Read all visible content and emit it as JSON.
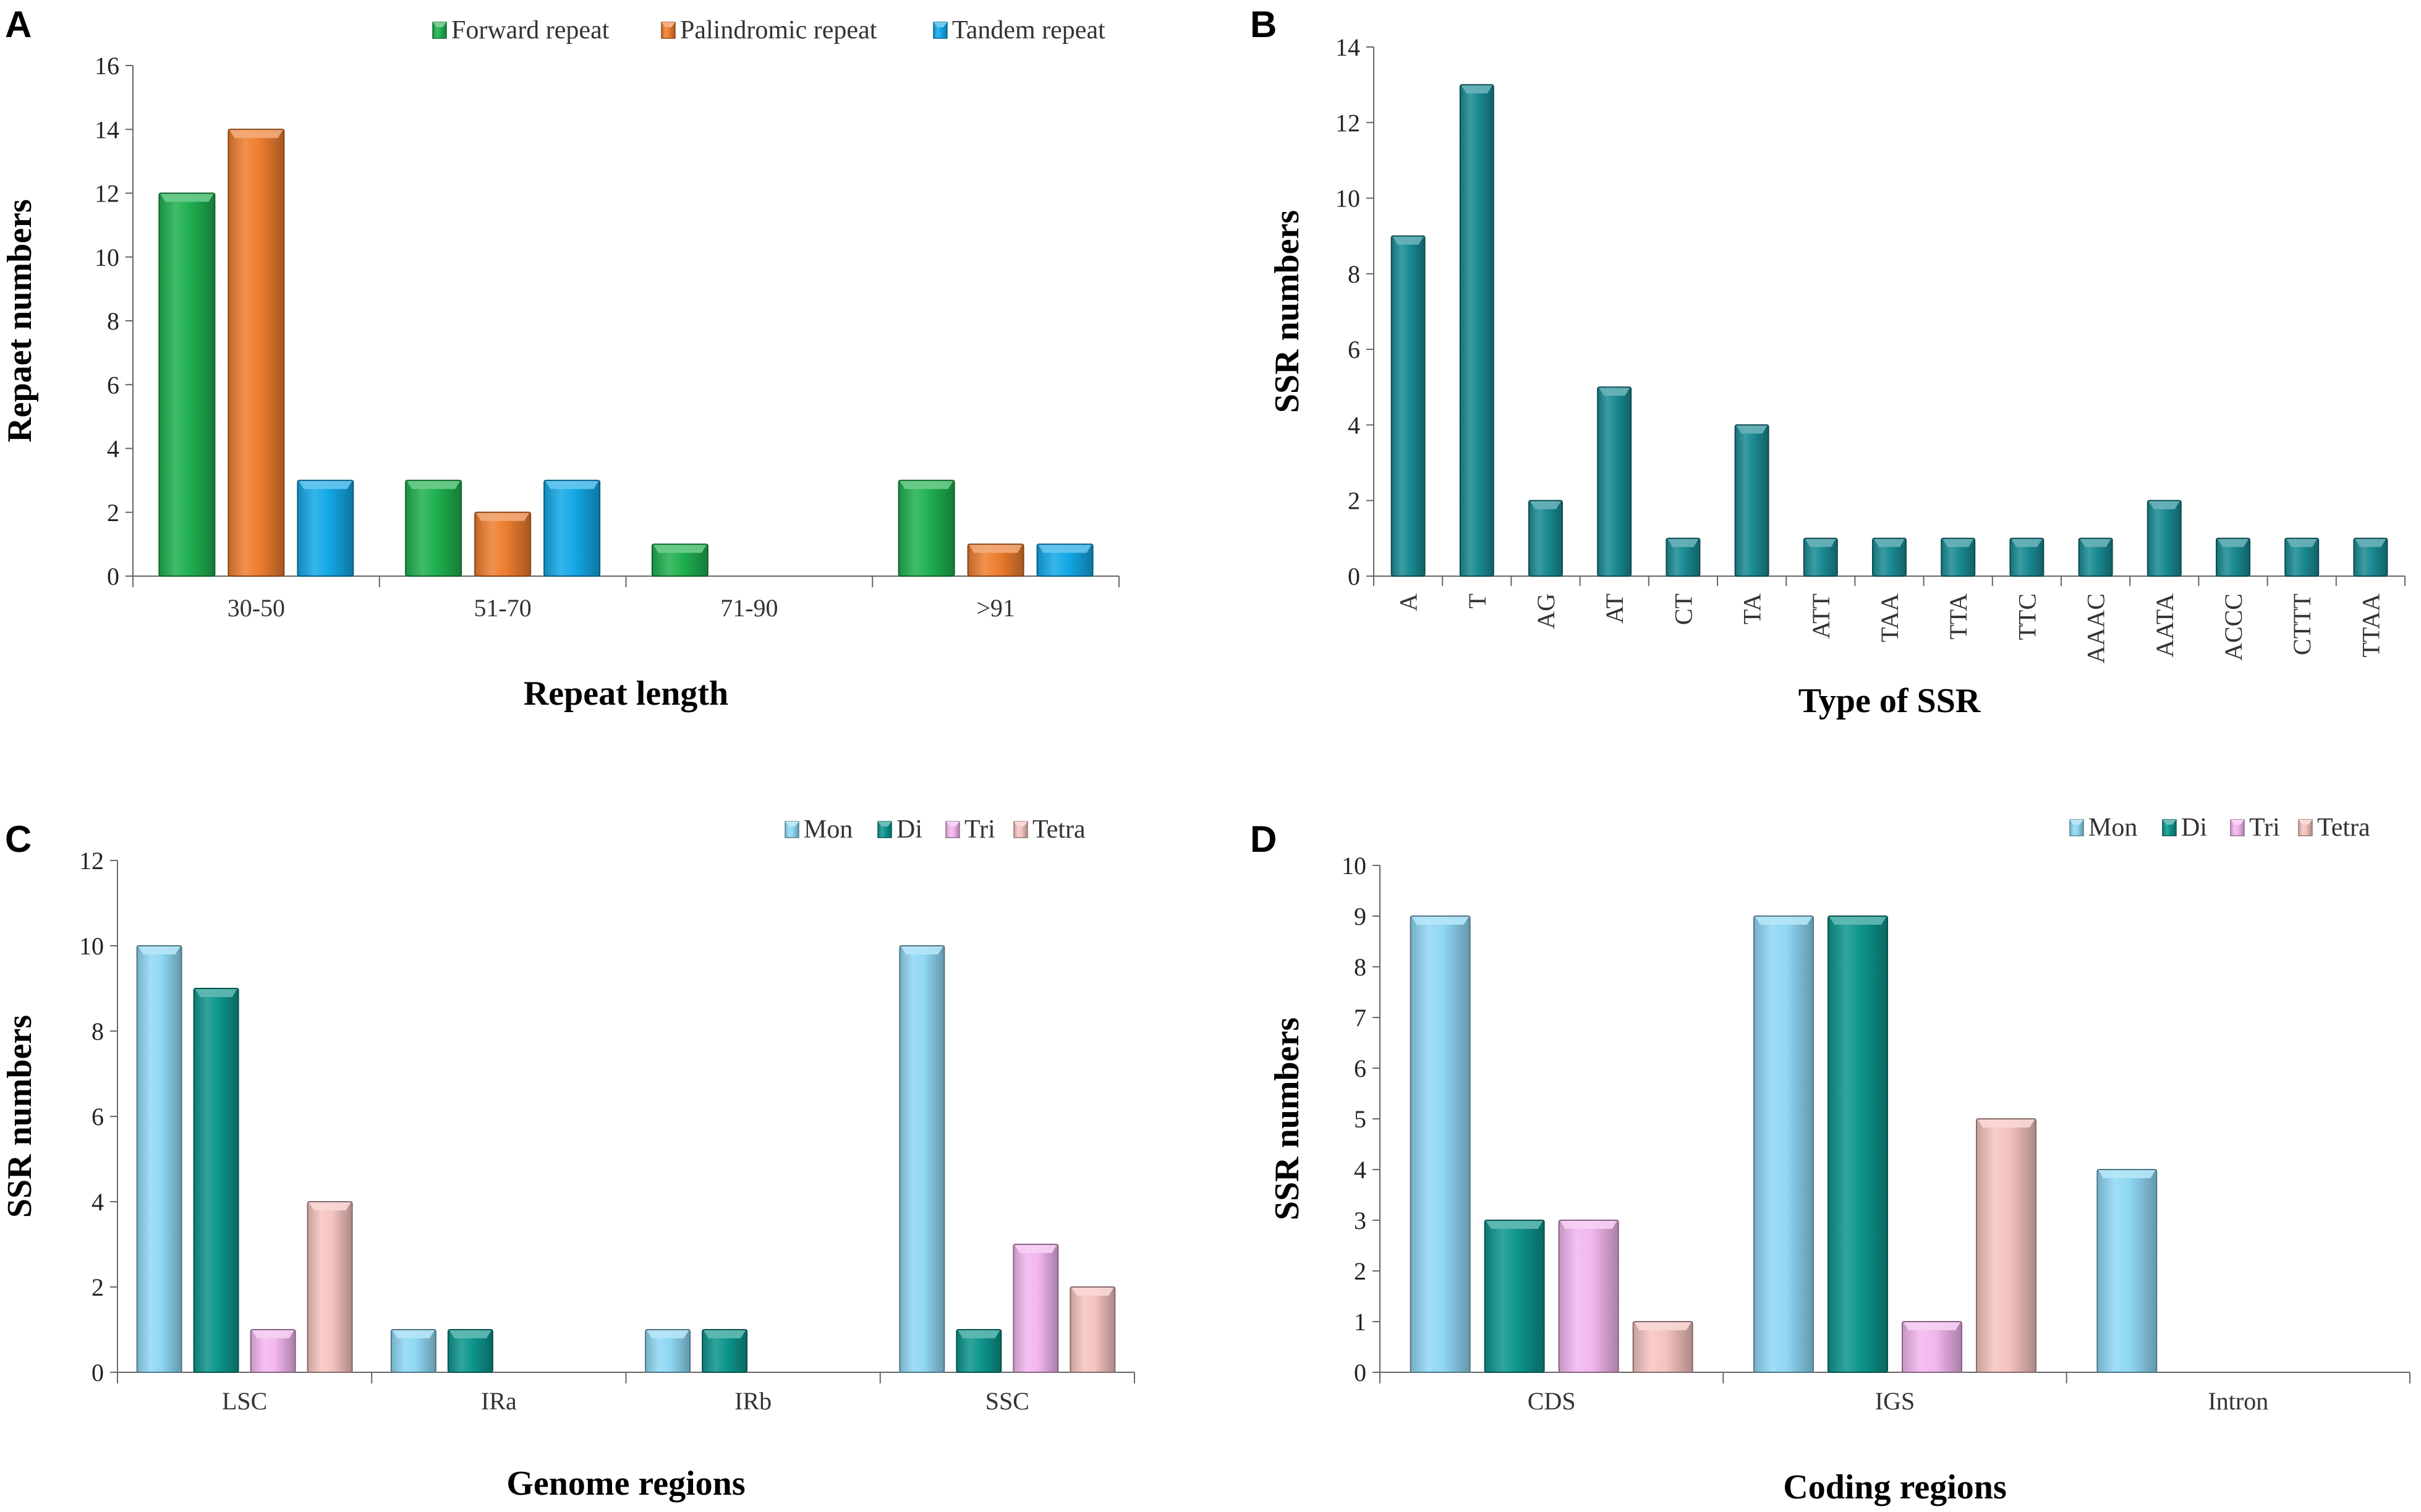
{
  "panels": {
    "A": "A",
    "B": "B",
    "C": "C",
    "D": "D"
  },
  "colors": {
    "forward": "#1fb04f",
    "palindromic": "#ee7d2f",
    "tandem": "#13a8e6",
    "ssr_type": "#1a8a93",
    "mon": "#8fd7f4",
    "di": "#0d958c",
    "tri": "#f3b6ee",
    "tetra": "#f5c3c0"
  },
  "chart_data": [
    {
      "id": "A",
      "type": "bar",
      "categories": [
        "30-50",
        "51-70",
        "71-90",
        ">91"
      ],
      "series": [
        {
          "name": "Forward repeat",
          "values": [
            12,
            3,
            1,
            3
          ]
        },
        {
          "name": "Palindromic repeat",
          "values": [
            14,
            2,
            0,
            1
          ]
        },
        {
          "name": "Tandem repeat",
          "values": [
            3,
            3,
            0,
            1
          ]
        }
      ],
      "xlabel": "Repeat length",
      "ylabel": "Repaet numbers",
      "ylim": [
        0,
        16
      ],
      "yticks": [
        0,
        2,
        4,
        6,
        8,
        10,
        12,
        14,
        16
      ],
      "legend": "top-right"
    },
    {
      "id": "B",
      "type": "bar",
      "categories": [
        "A",
        "T",
        "AG",
        "AT",
        "CT",
        "TA",
        "ATT",
        "TAA",
        "TTA",
        "TTC",
        "AAAC",
        "AATA",
        "ACCC",
        "CTTT",
        "TTAA"
      ],
      "series": [
        {
          "name": "SSR",
          "values": [
            9,
            13,
            2,
            5,
            1,
            4,
            1,
            1,
            1,
            1,
            1,
            2,
            1,
            1,
            1
          ]
        }
      ],
      "xlabel": "Type of SSR",
      "ylabel": "SSR numbers",
      "ylim": [
        0,
        14
      ],
      "yticks": [
        0,
        2,
        4,
        6,
        8,
        10,
        12,
        14
      ]
    },
    {
      "id": "C",
      "type": "bar",
      "categories": [
        "LSC",
        "IRa",
        "IRb",
        "SSC"
      ],
      "series": [
        {
          "name": "Mon",
          "values": [
            10,
            1,
            1,
            10
          ]
        },
        {
          "name": "Di",
          "values": [
            9,
            1,
            1,
            1
          ]
        },
        {
          "name": "Tri",
          "values": [
            1,
            0,
            0,
            3
          ]
        },
        {
          "name": "Tetra",
          "values": [
            4,
            0,
            0,
            2
          ]
        }
      ],
      "xlabel": "Genome regions",
      "ylabel": "SSR numbers",
      "ylim": [
        0,
        12
      ],
      "yticks": [
        0,
        2,
        4,
        6,
        8,
        10,
        12
      ],
      "legend": "top-right"
    },
    {
      "id": "D",
      "type": "bar",
      "categories": [
        "CDS",
        "IGS",
        "Intron"
      ],
      "series": [
        {
          "name": "Mon",
          "values": [
            9,
            9,
            4
          ]
        },
        {
          "name": "Di",
          "values": [
            3,
            9,
            0
          ]
        },
        {
          "name": "Tri",
          "values": [
            3,
            1,
            0
          ]
        },
        {
          "name": "Tetra",
          "values": [
            1,
            5,
            0
          ]
        }
      ],
      "xlabel": "Coding regions",
      "ylabel": "SSR numbers",
      "ylim": [
        0,
        10
      ],
      "yticks": [
        0,
        1,
        2,
        3,
        4,
        5,
        6,
        7,
        8,
        9,
        10
      ],
      "legend": "top-right"
    }
  ]
}
